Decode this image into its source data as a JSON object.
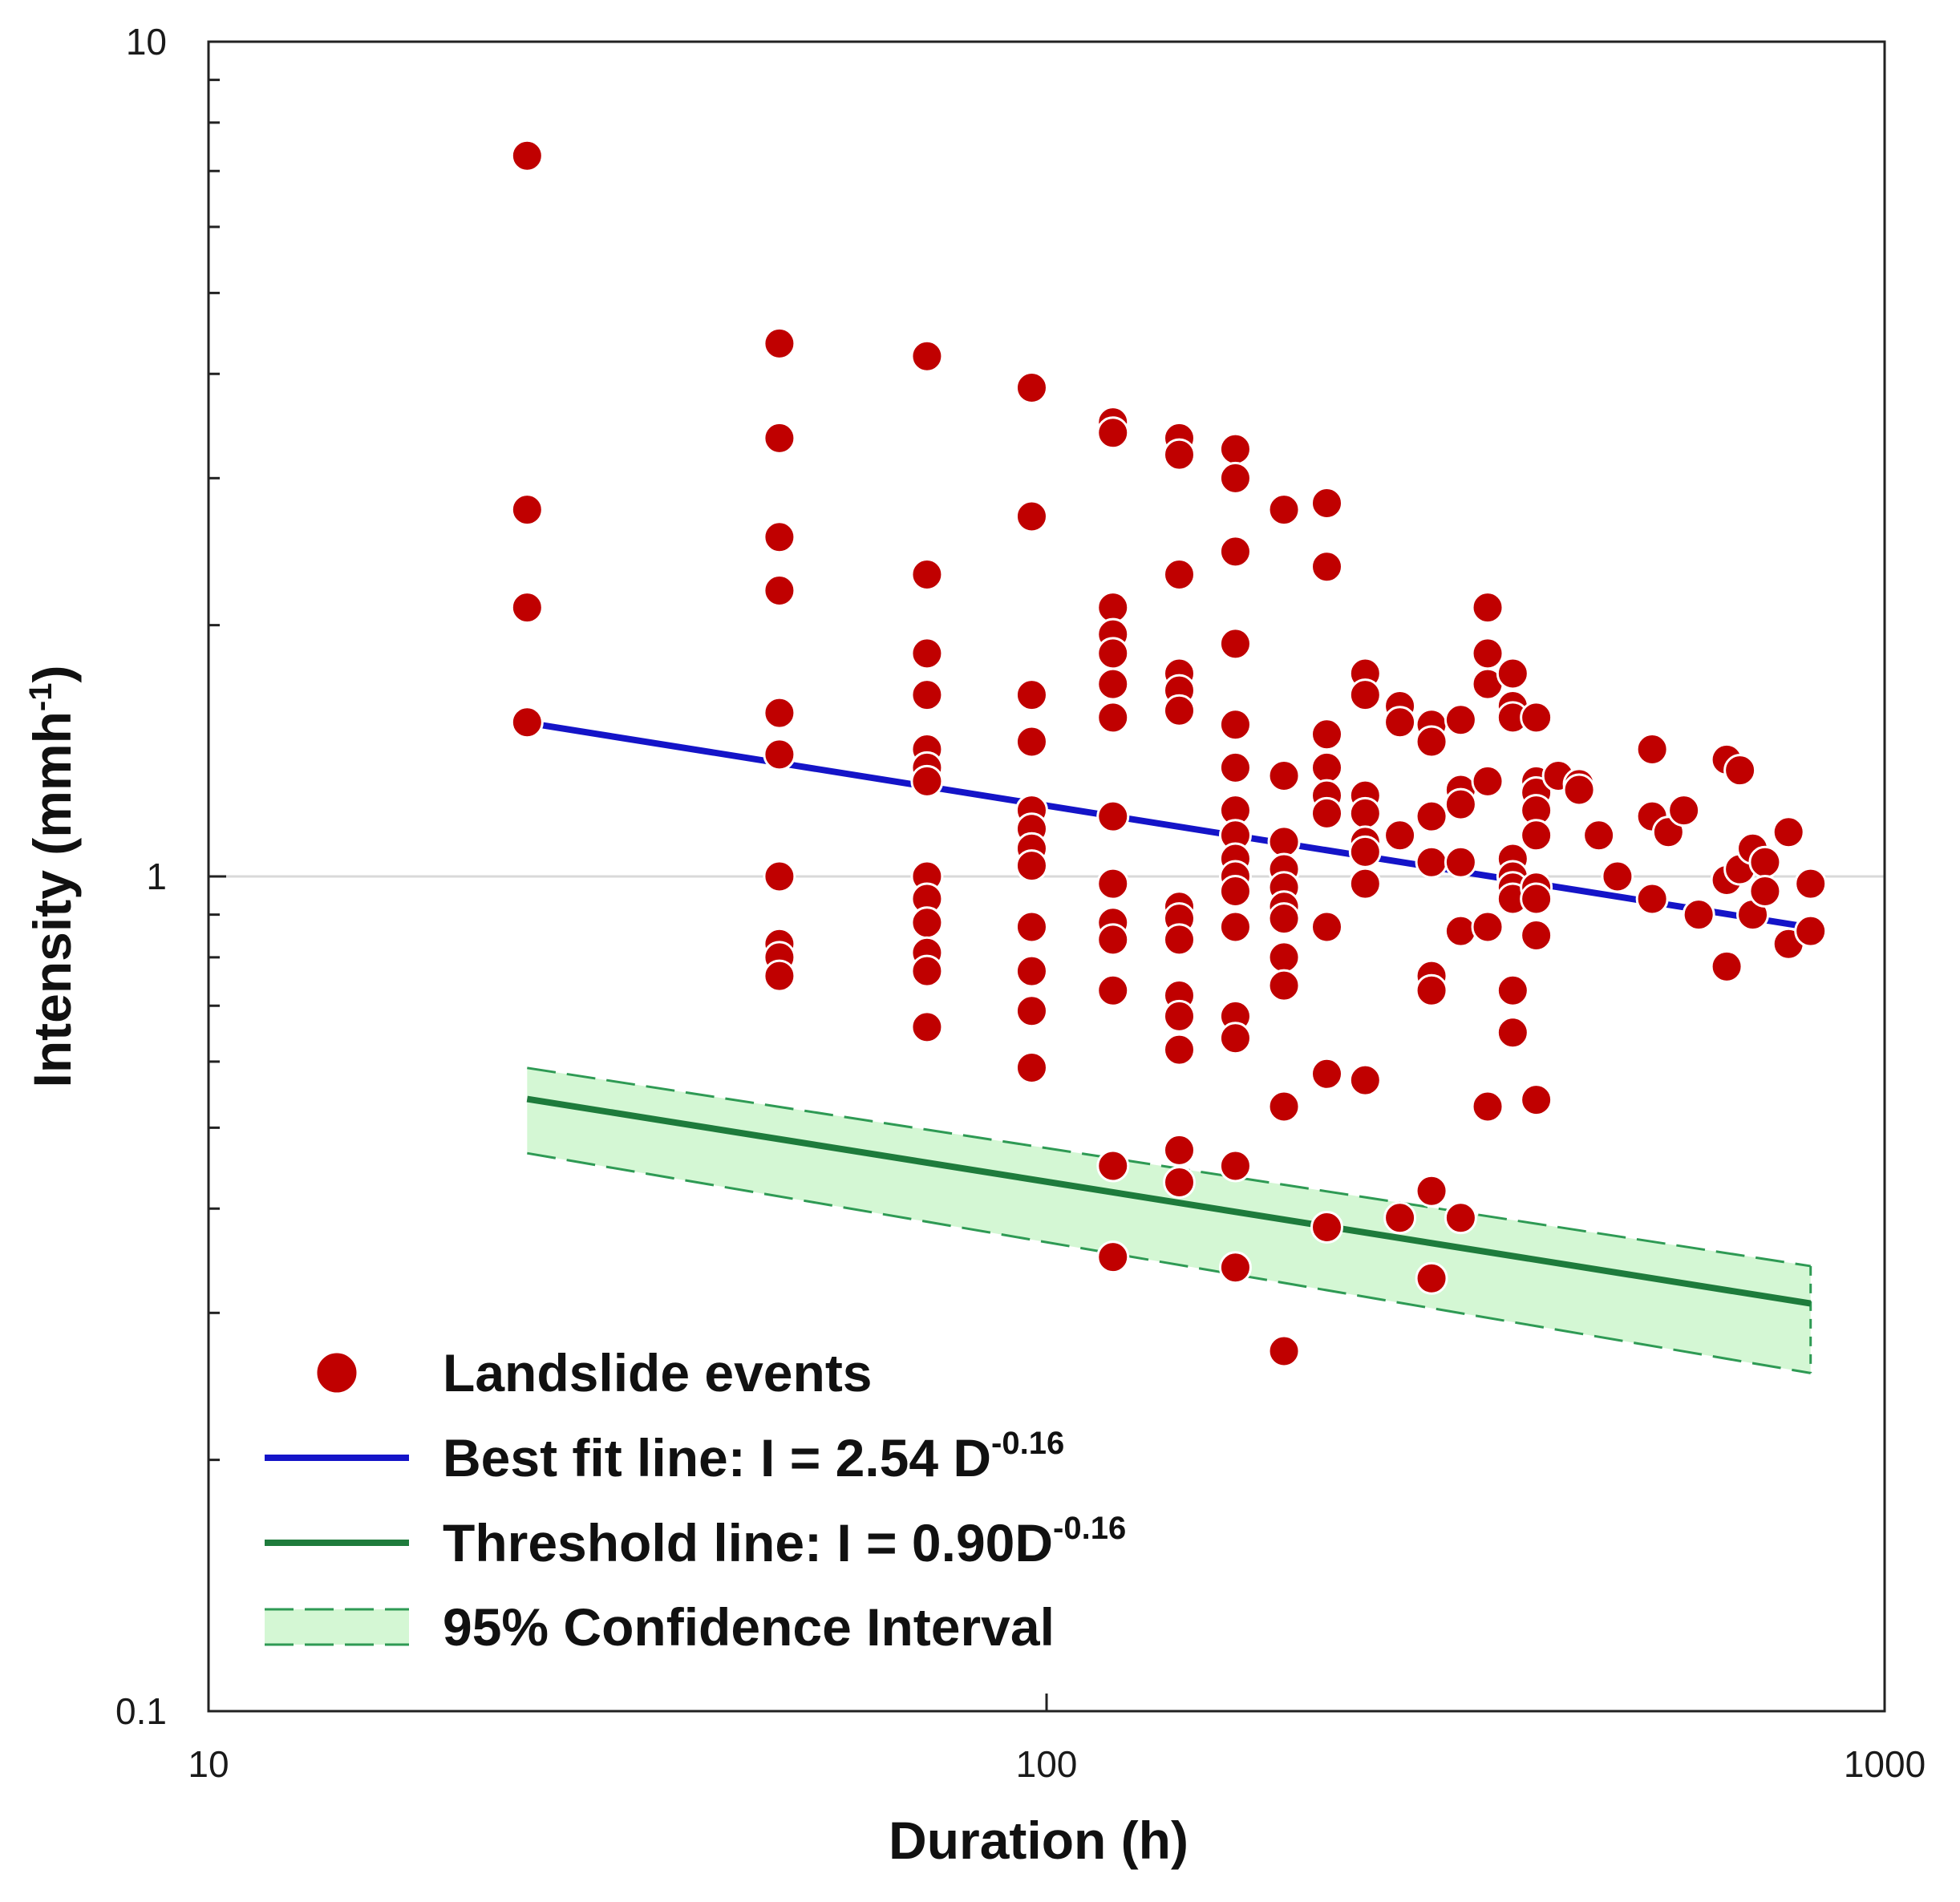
{
  "chart_data": {
    "type": "scatter",
    "x_scale": "log",
    "y_scale": "log",
    "xlabel": "Duration (h)",
    "ylabel_main": "Intensity (mmh",
    "ylabel_sup": "-1",
    "ylabel_end": ")",
    "xlim": [
      10,
      1000
    ],
    "ylim": [
      0.1,
      10
    ],
    "x_ticks": [
      {
        "value": 10,
        "label": "10"
      },
      {
        "value": 100,
        "label": "100"
      },
      {
        "value": 1000,
        "label": "1000"
      }
    ],
    "y_ticks": [
      {
        "value": 0.1,
        "label": "0.1"
      },
      {
        "value": 1,
        "label": "1"
      },
      {
        "value": 10,
        "label": "10"
      }
    ],
    "y_gridline": 1,
    "series": [
      {
        "name": "Landslide events",
        "kind": "scatter",
        "color": "#c00000",
        "points": [
          [
            24,
            7.3
          ],
          [
            24,
            2.75
          ],
          [
            24,
            2.1
          ],
          [
            24,
            1.53
          ],
          [
            48,
            4.35
          ],
          [
            48,
            3.35
          ],
          [
            48,
            2.55
          ],
          [
            48,
            2.2
          ],
          [
            48,
            1.57
          ],
          [
            48,
            1.4
          ],
          [
            48,
            1.0
          ],
          [
            48,
            0.83
          ],
          [
            48,
            0.8
          ],
          [
            48,
            0.76
          ],
          [
            72,
            4.2
          ],
          [
            72,
            2.3
          ],
          [
            72,
            1.85
          ],
          [
            72,
            1.65
          ],
          [
            72,
            1.42
          ],
          [
            72,
            1.35
          ],
          [
            72,
            1.3
          ],
          [
            72,
            1.0
          ],
          [
            72,
            0.94
          ],
          [
            72,
            0.88
          ],
          [
            72,
            0.81
          ],
          [
            72,
            0.77
          ],
          [
            72,
            0.66
          ],
          [
            96,
            3.85
          ],
          [
            96,
            2.7
          ],
          [
            96,
            1.65
          ],
          [
            96,
            1.45
          ],
          [
            96,
            1.2
          ],
          [
            96,
            1.14
          ],
          [
            96,
            1.08
          ],
          [
            96,
            1.03
          ],
          [
            96,
            0.87
          ],
          [
            96,
            0.77
          ],
          [
            96,
            0.69
          ],
          [
            96,
            0.59
          ],
          [
            120,
            3.5
          ],
          [
            120,
            3.4
          ],
          [
            120,
            2.1
          ],
          [
            120,
            1.95
          ],
          [
            120,
            1.85
          ],
          [
            120,
            1.7
          ],
          [
            120,
            1.55
          ],
          [
            120,
            1.18
          ],
          [
            120,
            0.98
          ],
          [
            120,
            0.88
          ],
          [
            120,
            0.84
          ],
          [
            120,
            0.73
          ],
          [
            120,
            0.45
          ],
          [
            120,
            0.35
          ],
          [
            144,
            3.35
          ],
          [
            144,
            3.2
          ],
          [
            144,
            2.3
          ],
          [
            144,
            1.75
          ],
          [
            144,
            1.67
          ],
          [
            144,
            1.58
          ],
          [
            144,
            0.92
          ],
          [
            144,
            0.89
          ],
          [
            144,
            0.84
          ],
          [
            144,
            0.72
          ],
          [
            144,
            0.68
          ],
          [
            144,
            0.62
          ],
          [
            144,
            0.47
          ],
          [
            144,
            0.43
          ],
          [
            168,
            3.25
          ],
          [
            168,
            3.0
          ],
          [
            168,
            2.45
          ],
          [
            168,
            1.9
          ],
          [
            168,
            1.52
          ],
          [
            168,
            1.35
          ],
          [
            168,
            1.2
          ],
          [
            168,
            1.12
          ],
          [
            168,
            1.05
          ],
          [
            168,
            1.0
          ],
          [
            168,
            0.96
          ],
          [
            168,
            0.87
          ],
          [
            168,
            0.68
          ],
          [
            168,
            0.64
          ],
          [
            168,
            0.45
          ],
          [
            168,
            0.34
          ],
          [
            192,
            2.75
          ],
          [
            192,
            1.32
          ],
          [
            192,
            1.1
          ],
          [
            192,
            1.02
          ],
          [
            192,
            0.97
          ],
          [
            192,
            0.92
          ],
          [
            192,
            0.89
          ],
          [
            192,
            0.8
          ],
          [
            192,
            0.74
          ],
          [
            192,
            0.53
          ],
          [
            192,
            0.27
          ],
          [
            216,
            2.8
          ],
          [
            216,
            2.35
          ],
          [
            216,
            1.48
          ],
          [
            216,
            1.35
          ],
          [
            216,
            1.25
          ],
          [
            216,
            1.19
          ],
          [
            216,
            0.87
          ],
          [
            216,
            0.58
          ],
          [
            216,
            0.38
          ],
          [
            240,
            1.75
          ],
          [
            240,
            1.65
          ],
          [
            240,
            1.25
          ],
          [
            240,
            1.19
          ],
          [
            240,
            1.1
          ],
          [
            240,
            1.07
          ],
          [
            240,
            0.98
          ],
          [
            240,
            0.57
          ],
          [
            264,
            1.6
          ],
          [
            264,
            1.53
          ],
          [
            264,
            1.12
          ],
          [
            264,
            0.39
          ],
          [
            288,
            1.52
          ],
          [
            288,
            1.45
          ],
          [
            288,
            1.18
          ],
          [
            288,
            1.04
          ],
          [
            288,
            0.76
          ],
          [
            288,
            0.73
          ],
          [
            288,
            0.42
          ],
          [
            288,
            0.33
          ],
          [
            312,
            1.54
          ],
          [
            312,
            1.27
          ],
          [
            312,
            1.22
          ],
          [
            312,
            1.04
          ],
          [
            312,
            0.86
          ],
          [
            312,
            0.39
          ],
          [
            336,
            2.1
          ],
          [
            336,
            1.85
          ],
          [
            336,
            1.7
          ],
          [
            336,
            1.3
          ],
          [
            336,
            0.87
          ],
          [
            336,
            0.53
          ],
          [
            360,
            1.75
          ],
          [
            360,
            1.6
          ],
          [
            360,
            1.55
          ],
          [
            360,
            1.05
          ],
          [
            360,
            1.0
          ],
          [
            360,
            0.97
          ],
          [
            360,
            0.94
          ],
          [
            360,
            0.73
          ],
          [
            360,
            0.65
          ],
          [
            384,
            1.55
          ],
          [
            384,
            1.3
          ],
          [
            384,
            1.26
          ],
          [
            384,
            1.2
          ],
          [
            384,
            1.12
          ],
          [
            384,
            0.97
          ],
          [
            384,
            0.94
          ],
          [
            384,
            0.85
          ],
          [
            384,
            0.54
          ],
          [
            408,
            1.32
          ],
          [
            432,
            1.29
          ],
          [
            432,
            1.27
          ],
          [
            456,
            1.12
          ],
          [
            480,
            1.0
          ],
          [
            528,
            1.42
          ],
          [
            528,
            1.18
          ],
          [
            528,
            0.94
          ],
          [
            552,
            1.13
          ],
          [
            576,
            1.2
          ],
          [
            600,
            0.9
          ],
          [
            648,
            1.38
          ],
          [
            648,
            0.99
          ],
          [
            648,
            0.78
          ],
          [
            672,
            1.34
          ],
          [
            672,
            1.02
          ],
          [
            696,
            1.08
          ],
          [
            696,
            0.9
          ],
          [
            720,
            1.04
          ],
          [
            720,
            0.96
          ],
          [
            768,
            1.13
          ],
          [
            768,
            0.83
          ],
          [
            816,
            0.98
          ],
          [
            816,
            0.86
          ]
        ]
      },
      {
        "name": "Best fit line: I = 2.54 D",
        "sup": "-0.16",
        "kind": "line",
        "color": "#1414c8",
        "coef": 2.54,
        "exponent": -0.16,
        "x_range": [
          24,
          816
        ]
      },
      {
        "name": "Threshold line: I = 0.90D",
        "sup": "-0.16",
        "kind": "line",
        "color": "#1e7b3c",
        "coef": 0.9,
        "exponent": -0.16,
        "x_range": [
          24,
          816
        ]
      },
      {
        "name": "95% Confidence Interval",
        "kind": "band",
        "fill": "#d4f7d4",
        "edge_color": "#2e9a54",
        "upper_coef": 0.965,
        "lower_coef": 0.805,
        "upper_exponent": -0.155,
        "lower_exponent": -0.172,
        "x_range": [
          24,
          816
        ]
      }
    ]
  }
}
